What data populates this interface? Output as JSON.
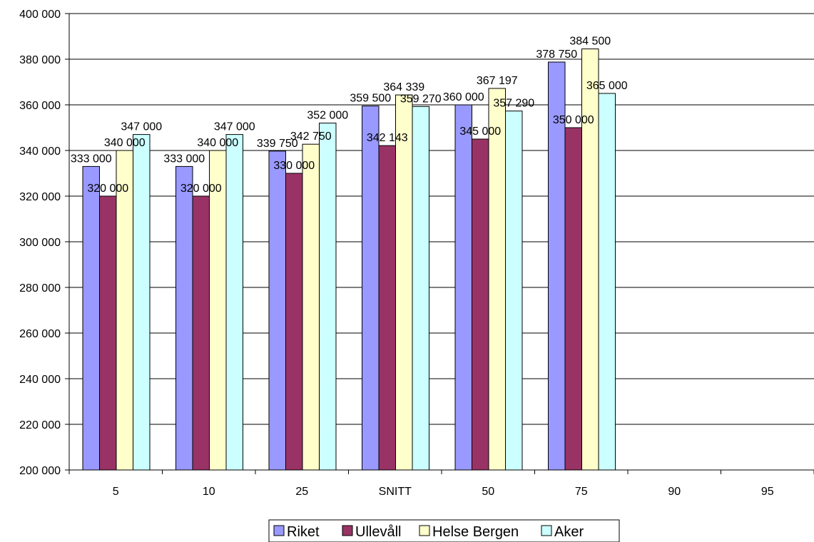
{
  "chart_data": {
    "type": "bar",
    "categories": [
      "5",
      "10",
      "25",
      "SNITT",
      "50",
      "75",
      "90",
      "95"
    ],
    "series": [
      {
        "name": "Riket",
        "color": "#9999ff",
        "values": [
          333000,
          333000,
          339750,
          359500,
          360000,
          378750,
          null,
          null
        ]
      },
      {
        "name": "Ullevåll",
        "color": "#993366",
        "values": [
          320000,
          320000,
          330000,
          342143,
          345000,
          350000,
          null,
          null
        ]
      },
      {
        "name": "Helse Bergen",
        "color": "#ffffcc",
        "values": [
          340000,
          340000,
          342750,
          364339,
          367197,
          384500,
          null,
          null
        ]
      },
      {
        "name": "Aker",
        "color": "#ccffff",
        "values": [
          347000,
          347000,
          352000,
          359270,
          357290,
          365000,
          null,
          null
        ]
      }
    ],
    "data_labels": [
      [
        "333 000",
        "333 000",
        "339 750",
        "359 500",
        "360 000",
        "378 750",
        "",
        ""
      ],
      [
        "320 000",
        "320 000",
        "330 000",
        "342 143",
        "345 000",
        "350 000",
        "",
        ""
      ],
      [
        "340 000",
        "340 000",
        "342 750",
        "364 339",
        "367 197",
        "384 500",
        "",
        ""
      ],
      [
        "347 000",
        "347 000",
        "352 000",
        "359 270",
        "357 290",
        "365 000",
        "",
        ""
      ]
    ],
    "ylim": [
      200000,
      400000
    ],
    "yticks": [
      200000,
      220000,
      240000,
      260000,
      280000,
      300000,
      320000,
      340000,
      360000,
      380000,
      400000
    ],
    "ytick_labels": [
      "200 000",
      "220 000",
      "240 000",
      "260 000",
      "280 000",
      "300 000",
      "320 000",
      "340 000",
      "360 000",
      "380 000",
      "400 000"
    ],
    "title": "",
    "xlabel": "",
    "ylabel": "",
    "grid": true,
    "legend_position": "bottom"
  }
}
